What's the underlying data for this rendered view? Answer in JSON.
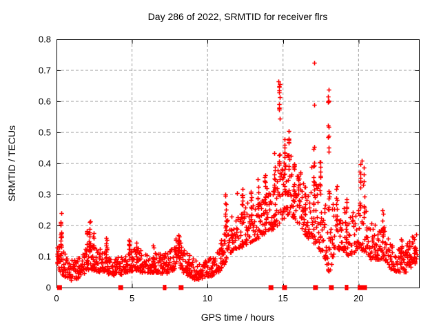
{
  "chart_data": {
    "type": "scatter",
    "title": "Day 286 of 2022, SRMTID for receiver flrs",
    "xlabel": "GPS time / hours",
    "ylabel": "SRMTID / TECUs",
    "xlim": [
      0,
      24
    ],
    "ylim": [
      0,
      0.8
    ],
    "xticks": [
      0,
      5,
      10,
      15,
      20
    ],
    "yticks": [
      0,
      0.1,
      0.2,
      0.3,
      0.4,
      0.5,
      0.6,
      0.7,
      0.8
    ],
    "ytick_labels": [
      "0",
      "0.1",
      "0.2",
      "0.3",
      "0.4",
      "0.5",
      "0.6",
      "0.7",
      "0.8"
    ],
    "grid": true,
    "legend": "none",
    "marker": {
      "shape": "plus",
      "color": "#ff0000",
      "size": 7
    },
    "colors": {
      "background": "#ffffff",
      "frame": "#000000",
      "grid": "#9c9c9c",
      "text": "#000000"
    },
    "seed": 2022286,
    "x_start": 0.02,
    "x_end": 23.85,
    "band": [
      [
        0.02,
        0.08,
        0.125
      ],
      [
        0.25,
        0.05,
        0.13
      ],
      [
        0.5,
        0.028,
        0.1
      ],
      [
        0.9,
        0.022,
        0.085
      ],
      [
        1.4,
        0.03,
        0.09
      ],
      [
        1.9,
        0.05,
        0.12
      ],
      [
        2.2,
        0.06,
        0.14
      ],
      [
        2.7,
        0.05,
        0.115
      ],
      [
        3.2,
        0.05,
        0.115
      ],
      [
        3.6,
        0.04,
        0.1
      ],
      [
        4.1,
        0.04,
        0.1
      ],
      [
        4.7,
        0.05,
        0.115
      ],
      [
        5.3,
        0.055,
        0.125
      ],
      [
        5.9,
        0.045,
        0.105
      ],
      [
        6.5,
        0.05,
        0.115
      ],
      [
        7.1,
        0.045,
        0.105
      ],
      [
        7.6,
        0.05,
        0.115
      ],
      [
        8.0,
        0.07,
        0.155
      ],
      [
        8.4,
        0.05,
        0.12
      ],
      [
        9.0,
        0.028,
        0.085
      ],
      [
        9.6,
        0.025,
        0.08
      ],
      [
        10.1,
        0.035,
        0.09
      ],
      [
        10.6,
        0.045,
        0.105
      ],
      [
        11.0,
        0.06,
        0.14
      ],
      [
        11.3,
        0.1,
        0.21
      ],
      [
        11.8,
        0.125,
        0.22
      ],
      [
        12.2,
        0.13,
        0.235
      ],
      [
        12.7,
        0.145,
        0.26
      ],
      [
        13.2,
        0.155,
        0.285
      ],
      [
        13.7,
        0.17,
        0.3
      ],
      [
        14.1,
        0.18,
        0.32
      ],
      [
        14.6,
        0.2,
        0.36
      ],
      [
        15.0,
        0.22,
        0.4
      ],
      [
        15.4,
        0.24,
        0.42
      ],
      [
        15.8,
        0.22,
        0.38
      ],
      [
        16.3,
        0.18,
        0.33
      ],
      [
        16.8,
        0.15,
        0.3
      ],
      [
        17.2,
        0.14,
        0.33
      ],
      [
        17.6,
        0.11,
        0.28
      ],
      [
        18.0,
        0.03,
        0.22
      ],
      [
        18.4,
        0.12,
        0.27
      ],
      [
        18.9,
        0.12,
        0.25
      ],
      [
        19.4,
        0.1,
        0.22
      ],
      [
        19.9,
        0.12,
        0.25
      ],
      [
        20.3,
        0.12,
        0.25
      ],
      [
        20.8,
        0.09,
        0.19
      ],
      [
        21.3,
        0.09,
        0.19
      ],
      [
        21.7,
        0.09,
        0.2
      ],
      [
        22.1,
        0.06,
        0.14
      ],
      [
        22.6,
        0.05,
        0.12
      ],
      [
        23.1,
        0.05,
        0.125
      ],
      [
        23.5,
        0.07,
        0.15
      ],
      [
        23.85,
        0.08,
        0.165
      ]
    ],
    "spikes": [
      [
        0.05,
        0.09,
        0.125,
        5
      ],
      [
        0.3,
        0.13,
        0.225,
        14
      ],
      [
        2.0,
        0.11,
        0.19,
        8
      ],
      [
        2.2,
        0.12,
        0.23,
        12
      ],
      [
        2.45,
        0.11,
        0.175,
        7
      ],
      [
        3.3,
        0.09,
        0.17,
        9
      ],
      [
        4.8,
        0.09,
        0.17,
        9
      ],
      [
        5.3,
        0.1,
        0.15,
        6
      ],
      [
        6.4,
        0.08,
        0.14,
        6
      ],
      [
        7.9,
        0.09,
        0.165,
        8
      ],
      [
        8.1,
        0.09,
        0.17,
        10
      ],
      [
        10.9,
        0.09,
        0.155,
        5
      ],
      [
        11.2,
        0.16,
        0.305,
        12
      ],
      [
        12.3,
        0.2,
        0.33,
        9
      ],
      [
        12.9,
        0.2,
        0.31,
        7
      ],
      [
        13.35,
        0.22,
        0.35,
        9
      ],
      [
        13.8,
        0.24,
        0.39,
        12
      ],
      [
        14.45,
        0.3,
        0.46,
        10
      ],
      [
        14.75,
        0.54,
        0.67,
        9
      ],
      [
        14.75,
        0.36,
        0.5,
        6
      ],
      [
        15.1,
        0.3,
        0.48,
        12
      ],
      [
        15.35,
        0.32,
        0.5,
        10
      ],
      [
        15.7,
        0.28,
        0.42,
        9
      ],
      [
        16.05,
        0.26,
        0.4,
        7
      ],
      [
        16.45,
        0.22,
        0.33,
        8
      ],
      [
        17.05,
        0.26,
        0.47,
        12
      ],
      [
        17.45,
        0.28,
        0.45,
        10
      ],
      [
        18.0,
        0.42,
        0.64,
        9
      ],
      [
        18.05,
        0.24,
        0.33,
        6
      ],
      [
        18.55,
        0.2,
        0.33,
        8
      ],
      [
        19.2,
        0.18,
        0.3,
        8
      ],
      [
        20.1,
        0.24,
        0.42,
        10
      ],
      [
        20.35,
        0.22,
        0.39,
        8
      ],
      [
        21.6,
        0.14,
        0.26,
        9
      ],
      [
        22.85,
        0.1,
        0.17,
        7
      ],
      [
        23.7,
        0.09,
        0.17,
        6
      ]
    ],
    "outliers": [
      [
        17.05,
        0.724
      ],
      [
        17.08,
        0.589
      ],
      [
        14.7,
        0.665
      ],
      [
        14.76,
        0.648
      ],
      [
        14.73,
        0.63
      ],
      [
        18.0,
        0.638
      ],
      [
        17.97,
        0.615
      ],
      [
        18.03,
        0.6
      ],
      [
        15.38,
        0.505
      ],
      [
        18.0,
        0.49
      ],
      [
        20.22,
        0.41
      ],
      [
        0.3,
        0.24
      ],
      [
        16.9,
        0.39
      ],
      [
        11.95,
        0.305
      ]
    ],
    "zero_markers": {
      "squares": [
        0.2,
        4.25,
        8.25,
        14.2,
        15.1,
        17.15,
        18.2,
        20.1,
        20.4
      ],
      "bars": [
        7.1,
        7.22,
        19.15,
        19.27
      ]
    }
  }
}
